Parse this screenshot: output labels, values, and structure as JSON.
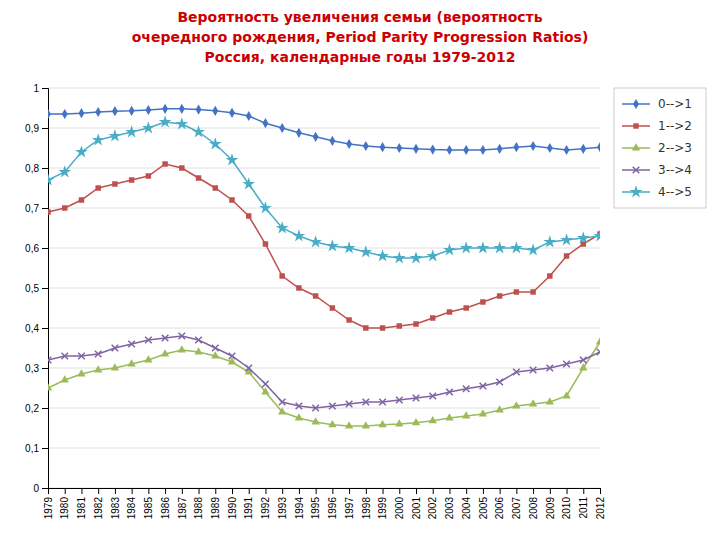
{
  "chart_data": {
    "type": "line",
    "title": "Вероятность увеличения семьи (вероятность\nочередного рождения, Period Parity Progression Ratios)\nРоссия, календарные годы 1979-2012",
    "x": [
      1979,
      1980,
      1981,
      1982,
      1983,
      1984,
      1985,
      1986,
      1987,
      1988,
      1989,
      1990,
      1991,
      1992,
      1993,
      1994,
      1995,
      1996,
      1997,
      1998,
      1999,
      2000,
      2001,
      2002,
      2003,
      2004,
      2005,
      2006,
      2007,
      2008,
      2009,
      2010,
      2011,
      2012
    ],
    "series": [
      {
        "name": "0-->1",
        "color": "#4472c4",
        "marker": "diamond",
        "values": [
          0.935,
          0.935,
          0.937,
          0.94,
          0.942,
          0.943,
          0.945,
          0.948,
          0.948,
          0.946,
          0.943,
          0.938,
          0.93,
          0.912,
          0.9,
          0.888,
          0.878,
          0.868,
          0.86,
          0.855,
          0.852,
          0.85,
          0.848,
          0.846,
          0.845,
          0.845,
          0.845,
          0.848,
          0.852,
          0.855,
          0.85,
          0.845,
          0.848,
          0.852
        ]
      },
      {
        "name": "1-->2",
        "color": "#c0504d",
        "marker": "square",
        "values": [
          0.69,
          0.7,
          0.72,
          0.75,
          0.76,
          0.77,
          0.78,
          0.81,
          0.8,
          0.775,
          0.75,
          0.72,
          0.68,
          0.61,
          0.53,
          0.5,
          0.48,
          0.45,
          0.42,
          0.4,
          0.4,
          0.405,
          0.41,
          0.425,
          0.44,
          0.45,
          0.465,
          0.48,
          0.49,
          0.49,
          0.53,
          0.58,
          0.61,
          0.635
        ]
      },
      {
        "name": "2-->3",
        "color": "#9bbb59",
        "marker": "triangle",
        "values": [
          0.25,
          0.27,
          0.285,
          0.295,
          0.3,
          0.31,
          0.32,
          0.335,
          0.345,
          0.34,
          0.33,
          0.315,
          0.29,
          0.24,
          0.19,
          0.175,
          0.165,
          0.158,
          0.155,
          0.155,
          0.158,
          0.16,
          0.163,
          0.168,
          0.175,
          0.18,
          0.185,
          0.195,
          0.205,
          0.21,
          0.215,
          0.23,
          0.3,
          0.365
        ]
      },
      {
        "name": "3-->4",
        "color": "#8064a2",
        "marker": "x",
        "values": [
          0.32,
          0.33,
          0.33,
          0.335,
          0.35,
          0.36,
          0.37,
          0.375,
          0.38,
          0.37,
          0.35,
          0.33,
          0.3,
          0.26,
          0.215,
          0.205,
          0.2,
          0.205,
          0.21,
          0.215,
          0.215,
          0.22,
          0.225,
          0.23,
          0.24,
          0.248,
          0.255,
          0.265,
          0.29,
          0.295,
          0.3,
          0.31,
          0.32,
          0.34
        ]
      },
      {
        "name": "4-->5",
        "color": "#4bacc6",
        "marker": "star",
        "values": [
          0.77,
          0.79,
          0.84,
          0.87,
          0.88,
          0.89,
          0.9,
          0.915,
          0.91,
          0.89,
          0.86,
          0.82,
          0.76,
          0.7,
          0.65,
          0.63,
          0.615,
          0.605,
          0.6,
          0.59,
          0.58,
          0.575,
          0.575,
          0.58,
          0.595,
          0.6,
          0.6,
          0.6,
          0.6,
          0.595,
          0.615,
          0.62,
          0.625,
          0.63
        ]
      }
    ],
    "xlim": [
      1979,
      2012
    ],
    "xticks": [
      1979,
      1980,
      1981,
      1982,
      1983,
      1984,
      1985,
      1986,
      1987,
      1988,
      1989,
      1990,
      1991,
      1992,
      1993,
      1994,
      1995,
      1996,
      1997,
      1998,
      1999,
      2000,
      2001,
      2002,
      2003,
      2004,
      2005,
      2006,
      2007,
      2008,
      2009,
      2010,
      2011,
      2012
    ],
    "ylim": [
      0,
      1
    ],
    "yticks": [
      0,
      {
        "value": 0.1,
        "label": "0,1"
      },
      {
        "value": 0.2,
        "label": "0,2"
      },
      {
        "value": 0.3,
        "label": "0,3"
      },
      {
        "value": 0.4,
        "label": "0,4"
      },
      {
        "value": 0.5,
        "label": "0,5"
      },
      {
        "value": 0.6,
        "label": "0,6"
      },
      {
        "value": 0.7,
        "label": "0,7"
      },
      {
        "value": 0.8,
        "label": "0,8"
      },
      {
        "value": 0.9,
        "label": "0,9"
      },
      1
    ],
    "grid": "y",
    "legend": "right"
  }
}
